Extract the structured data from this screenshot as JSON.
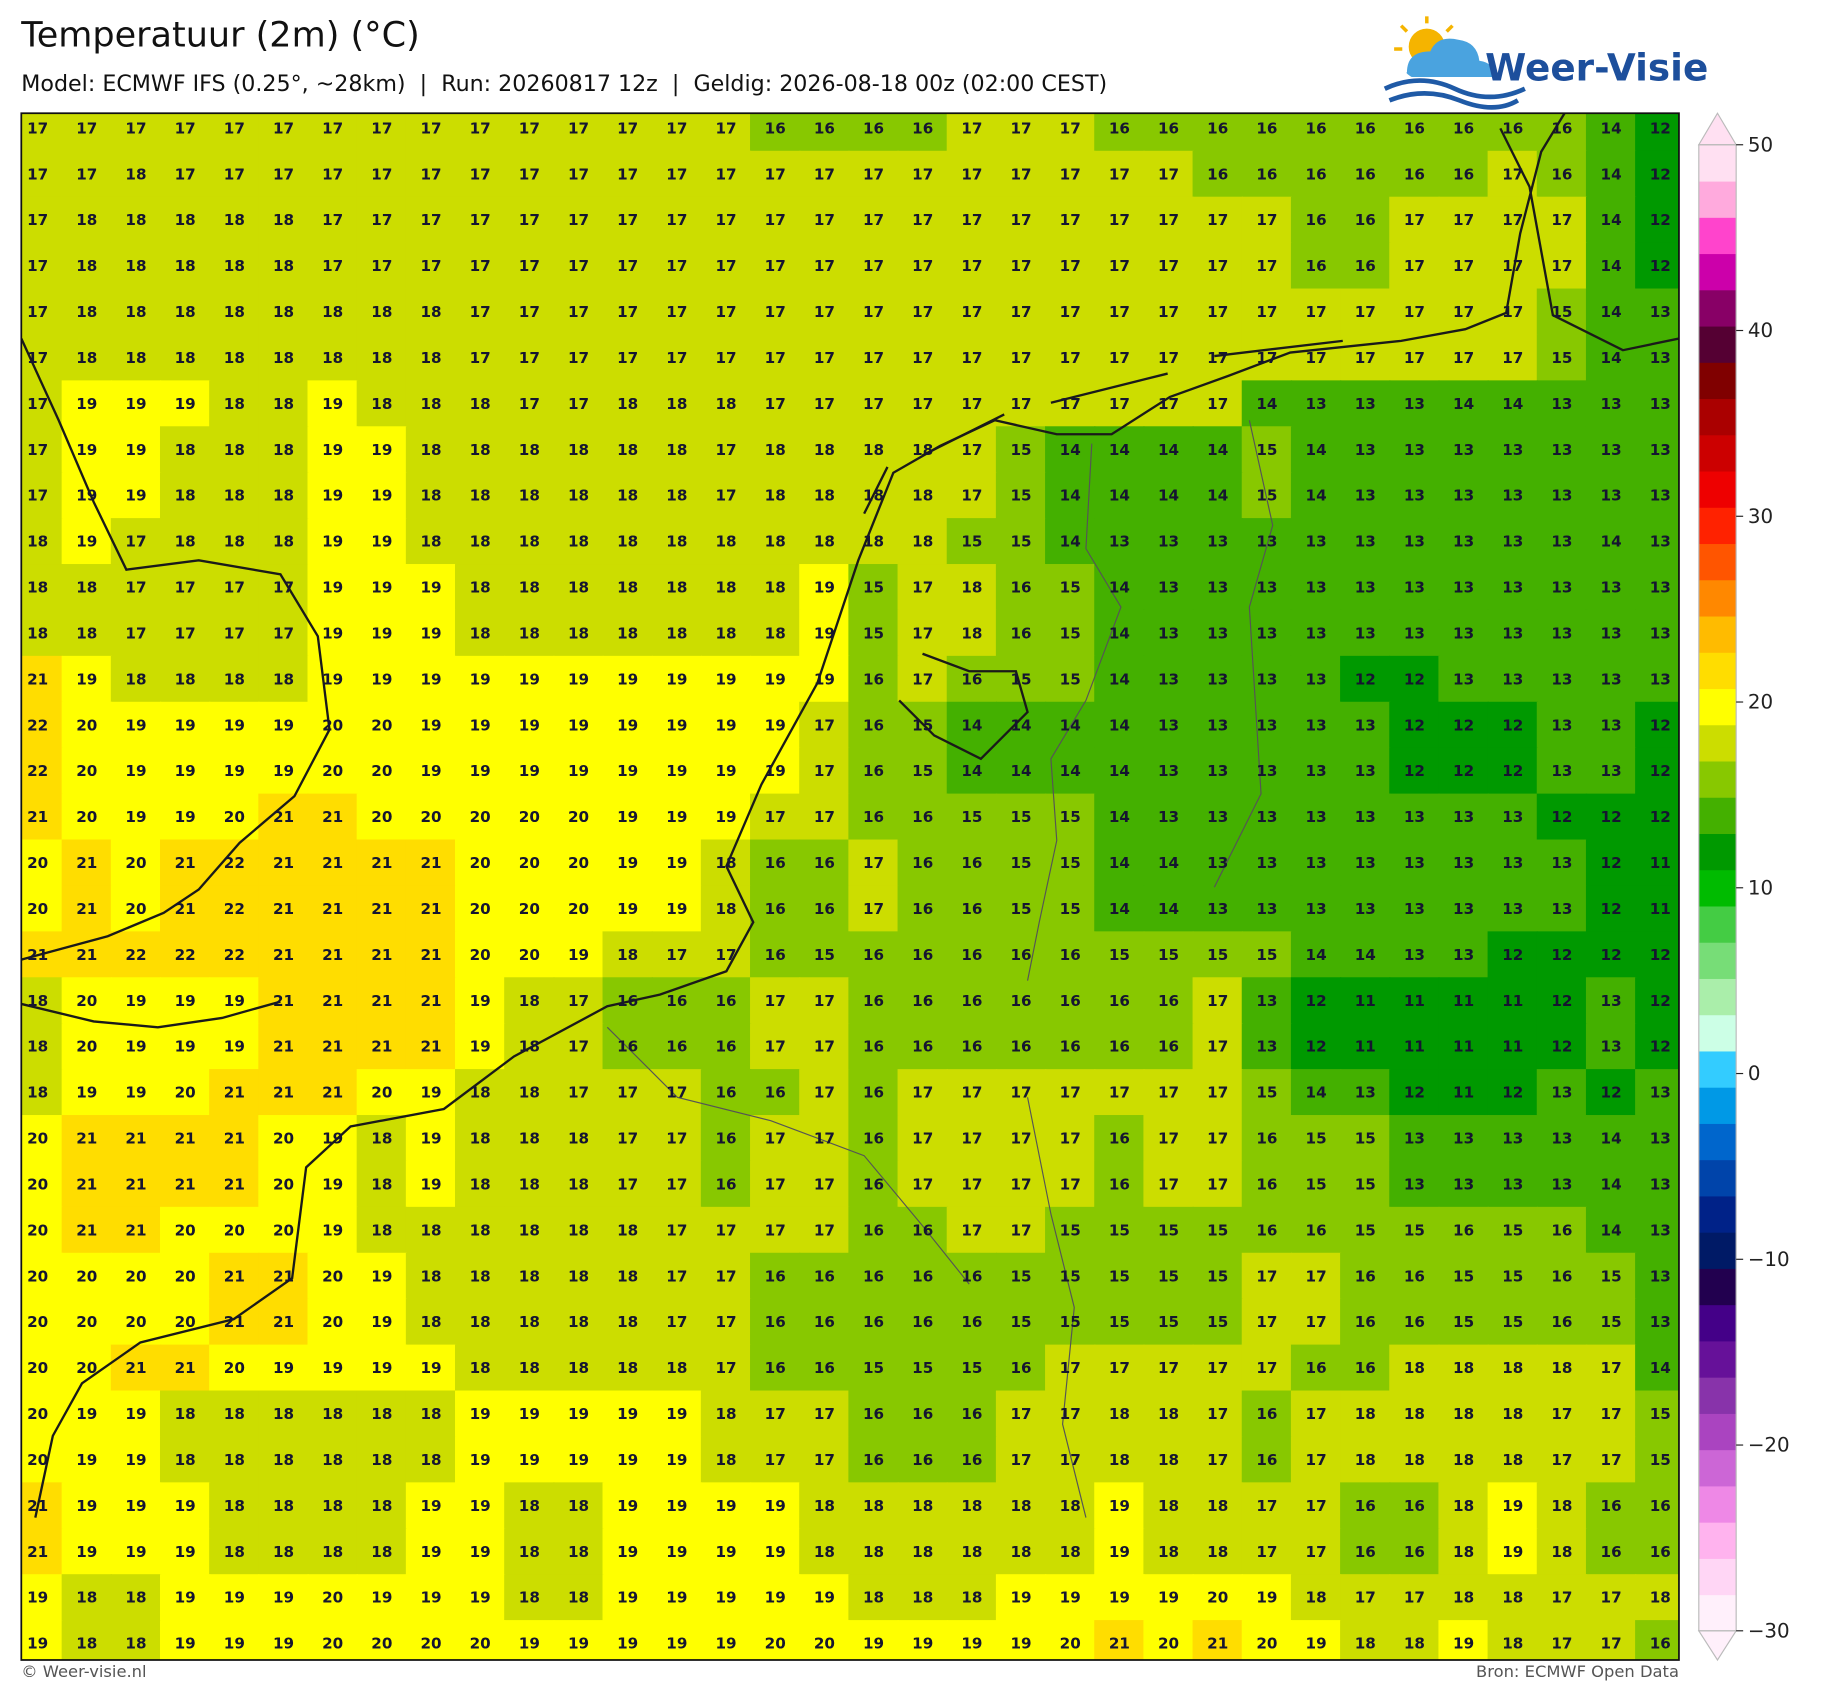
{
  "header": {
    "title": "Temperatuur (2m) (°C)",
    "subtitle": "Model: ECMWF IFS (0.25°, ~28km)  |  Run: 20260817 12z  |  Geldig: 2026-08-18 00z (02:00 CEST)"
  },
  "logo": {
    "text": "Weer-Visie"
  },
  "grid": {
    "rows": [
      [
        17,
        17,
        17,
        17,
        17,
        17,
        17,
        17,
        17,
        17,
        17,
        17,
        17,
        17,
        17,
        16,
        16,
        16,
        16,
        17,
        17,
        17,
        16,
        16,
        16,
        16,
        16,
        16,
        16,
        16,
        16,
        16,
        14,
        12
      ],
      [
        17,
        17,
        18,
        17,
        17,
        17,
        17,
        17,
        17,
        17,
        17,
        17,
        17,
        17,
        17,
        17,
        17,
        17,
        17,
        17,
        17,
        17,
        17,
        17,
        16,
        16,
        16,
        16,
        16,
        16,
        17,
        16,
        14,
        12
      ],
      [
        17,
        18,
        18,
        18,
        18,
        18,
        17,
        17,
        17,
        17,
        17,
        17,
        17,
        17,
        17,
        17,
        17,
        17,
        17,
        17,
        17,
        17,
        17,
        17,
        17,
        17,
        16,
        16,
        17,
        17,
        17,
        17,
        14,
        12
      ],
      [
        17,
        18,
        18,
        18,
        18,
        18,
        17,
        17,
        17,
        17,
        17,
        17,
        17,
        17,
        17,
        17,
        17,
        17,
        17,
        17,
        17,
        17,
        17,
        17,
        17,
        17,
        16,
        16,
        17,
        17,
        17,
        17,
        14,
        12
      ],
      [
        17,
        18,
        18,
        18,
        18,
        18,
        18,
        18,
        18,
        17,
        17,
        17,
        17,
        17,
        17,
        17,
        17,
        17,
        17,
        17,
        17,
        17,
        17,
        17,
        17,
        17,
        17,
        17,
        17,
        17,
        17,
        15,
        14,
        13
      ],
      [
        17,
        18,
        18,
        18,
        18,
        18,
        18,
        18,
        18,
        17,
        17,
        17,
        17,
        17,
        17,
        17,
        17,
        17,
        17,
        17,
        17,
        17,
        17,
        17,
        17,
        17,
        17,
        17,
        17,
        17,
        17,
        15,
        14,
        13
      ],
      [
        17,
        19,
        19,
        19,
        18,
        18,
        19,
        18,
        18,
        18,
        17,
        17,
        18,
        18,
        18,
        17,
        17,
        17,
        17,
        17,
        17,
        17,
        17,
        17,
        17,
        14,
        13,
        13,
        13,
        14,
        14,
        13,
        13,
        13
      ],
      [
        17,
        19,
        19,
        18,
        18,
        18,
        19,
        19,
        18,
        18,
        18,
        18,
        18,
        18,
        17,
        18,
        18,
        18,
        18,
        17,
        15,
        14,
        14,
        14,
        14,
        15,
        14,
        13,
        13,
        13,
        13,
        13,
        13,
        13
      ],
      [
        17,
        19,
        19,
        18,
        18,
        18,
        19,
        19,
        18,
        18,
        18,
        18,
        18,
        18,
        17,
        18,
        18,
        18,
        18,
        17,
        15,
        14,
        14,
        14,
        14,
        15,
        14,
        13,
        13,
        13,
        13,
        13,
        13,
        13
      ],
      [
        18,
        19,
        17,
        18,
        18,
        18,
        19,
        19,
        18,
        18,
        18,
        18,
        18,
        18,
        18,
        18,
        18,
        18,
        18,
        15,
        15,
        14,
        13,
        13,
        13,
        13,
        13,
        13,
        13,
        13,
        13,
        13,
        14,
        13
      ],
      [
        18,
        18,
        17,
        17,
        17,
        17,
        19,
        19,
        19,
        18,
        18,
        18,
        18,
        18,
        18,
        18,
        19,
        15,
        17,
        18,
        16,
        15,
        14,
        13,
        13,
        13,
        13,
        13,
        13,
        13,
        13,
        13,
        13,
        13
      ],
      [
        18,
        18,
        17,
        17,
        17,
        17,
        19,
        19,
        19,
        18,
        18,
        18,
        18,
        18,
        18,
        18,
        19,
        15,
        17,
        18,
        16,
        15,
        14,
        13,
        13,
        13,
        13,
        13,
        13,
        13,
        13,
        13,
        13,
        13
      ],
      [
        21,
        19,
        18,
        18,
        18,
        18,
        19,
        19,
        19,
        19,
        19,
        19,
        19,
        19,
        19,
        19,
        19,
        16,
        17,
        16,
        15,
        15,
        14,
        13,
        13,
        13,
        13,
        12,
        12,
        13,
        13,
        13,
        13,
        13
      ],
      [
        22,
        20,
        19,
        19,
        19,
        19,
        20,
        20,
        19,
        19,
        19,
        19,
        19,
        19,
        19,
        19,
        17,
        16,
        15,
        14,
        14,
        14,
        14,
        13,
        13,
        13,
        13,
        13,
        12,
        12,
        12,
        13,
        13,
        12
      ],
      [
        22,
        20,
        19,
        19,
        19,
        19,
        20,
        20,
        19,
        19,
        19,
        19,
        19,
        19,
        19,
        19,
        17,
        16,
        15,
        14,
        14,
        14,
        14,
        13,
        13,
        13,
        13,
        13,
        12,
        12,
        12,
        13,
        13,
        12
      ],
      [
        21,
        20,
        19,
        19,
        20,
        21,
        21,
        20,
        20,
        20,
        20,
        20,
        19,
        19,
        19,
        17,
        17,
        16,
        16,
        15,
        15,
        15,
        14,
        13,
        13,
        13,
        13,
        13,
        13,
        13,
        13,
        12,
        12,
        12
      ],
      [
        20,
        21,
        20,
        21,
        22,
        21,
        21,
        21,
        21,
        20,
        20,
        20,
        19,
        19,
        18,
        16,
        16,
        17,
        16,
        16,
        15,
        15,
        14,
        14,
        13,
        13,
        13,
        13,
        13,
        13,
        13,
        13,
        12,
        11
      ],
      [
        20,
        21,
        20,
        21,
        22,
        21,
        21,
        21,
        21,
        20,
        20,
        20,
        19,
        19,
        18,
        16,
        16,
        17,
        16,
        16,
        15,
        15,
        14,
        14,
        13,
        13,
        13,
        13,
        13,
        13,
        13,
        13,
        12,
        11
      ],
      [
        21,
        21,
        22,
        22,
        22,
        21,
        21,
        21,
        21,
        20,
        20,
        19,
        18,
        17,
        17,
        16,
        15,
        16,
        16,
        16,
        16,
        16,
        15,
        15,
        15,
        15,
        14,
        14,
        13,
        13,
        12,
        12,
        12,
        12
      ],
      [
        18,
        20,
        19,
        19,
        19,
        21,
        21,
        21,
        21,
        19,
        18,
        17,
        16,
        16,
        16,
        17,
        17,
        16,
        16,
        16,
        16,
        16,
        16,
        16,
        17,
        13,
        12,
        11,
        11,
        11,
        11,
        12,
        13,
        12
      ],
      [
        18,
        20,
        19,
        19,
        19,
        21,
        21,
        21,
        21,
        19,
        18,
        17,
        16,
        16,
        16,
        17,
        17,
        16,
        16,
        16,
        16,
        16,
        16,
        16,
        17,
        13,
        12,
        11,
        11,
        11,
        11,
        12,
        13,
        12
      ],
      [
        18,
        19,
        19,
        20,
        21,
        21,
        21,
        20,
        19,
        18,
        18,
        17,
        17,
        17,
        16,
        16,
        17,
        16,
        17,
        17,
        17,
        17,
        17,
        17,
        17,
        15,
        14,
        13,
        12,
        11,
        12,
        13,
        12,
        13
      ],
      [
        20,
        21,
        21,
        21,
        21,
        20,
        19,
        18,
        19,
        18,
        18,
        18,
        17,
        17,
        16,
        17,
        17,
        16,
        17,
        17,
        17,
        17,
        16,
        17,
        17,
        16,
        15,
        15,
        13,
        13,
        13,
        13,
        14,
        13
      ],
      [
        20,
        21,
        21,
        21,
        21,
        20,
        19,
        18,
        19,
        18,
        18,
        18,
        17,
        17,
        16,
        17,
        17,
        16,
        17,
        17,
        17,
        17,
        16,
        17,
        17,
        16,
        15,
        15,
        13,
        13,
        13,
        13,
        14,
        13
      ],
      [
        20,
        21,
        21,
        20,
        20,
        20,
        19,
        18,
        18,
        18,
        18,
        18,
        18,
        17,
        17,
        17,
        17,
        16,
        16,
        17,
        17,
        15,
        15,
        15,
        15,
        16,
        16,
        15,
        15,
        16,
        15,
        16,
        14,
        13
      ],
      [
        20,
        20,
        20,
        20,
        21,
        21,
        20,
        19,
        18,
        18,
        18,
        18,
        18,
        17,
        17,
        16,
        16,
        16,
        16,
        16,
        15,
        15,
        15,
        15,
        15,
        17,
        17,
        16,
        16,
        15,
        15,
        16,
        15,
        13
      ],
      [
        20,
        20,
        20,
        20,
        21,
        21,
        20,
        19,
        18,
        18,
        18,
        18,
        18,
        17,
        17,
        16,
        16,
        16,
        16,
        16,
        15,
        15,
        15,
        15,
        15,
        17,
        17,
        16,
        16,
        15,
        15,
        16,
        15,
        13
      ],
      [
        20,
        20,
        21,
        21,
        20,
        19,
        19,
        19,
        19,
        18,
        18,
        18,
        18,
        18,
        17,
        16,
        16,
        15,
        15,
        15,
        16,
        17,
        17,
        17,
        17,
        17,
        16,
        16,
        18,
        18,
        18,
        18,
        17,
        14
      ],
      [
        20,
        19,
        19,
        18,
        18,
        18,
        18,
        18,
        18,
        19,
        19,
        19,
        19,
        19,
        18,
        17,
        17,
        16,
        16,
        16,
        17,
        17,
        18,
        18,
        17,
        16,
        17,
        18,
        18,
        18,
        18,
        17,
        17,
        15
      ],
      [
        20,
        19,
        19,
        18,
        18,
        18,
        18,
        18,
        18,
        19,
        19,
        19,
        19,
        19,
        18,
        17,
        17,
        16,
        16,
        16,
        17,
        17,
        18,
        18,
        17,
        16,
        17,
        18,
        18,
        18,
        18,
        17,
        17,
        15
      ],
      [
        21,
        19,
        19,
        19,
        18,
        18,
        18,
        18,
        19,
        19,
        18,
        18,
        19,
        19,
        19,
        19,
        18,
        18,
        18,
        18,
        18,
        18,
        19,
        18,
        18,
        17,
        17,
        16,
        16,
        18,
        19,
        18,
        16,
        16
      ],
      [
        21,
        19,
        19,
        19,
        18,
        18,
        18,
        18,
        19,
        19,
        18,
        18,
        19,
        19,
        19,
        19,
        18,
        18,
        18,
        18,
        18,
        18,
        19,
        18,
        18,
        17,
        17,
        16,
        16,
        18,
        19,
        18,
        16,
        16
      ],
      [
        19,
        18,
        18,
        19,
        19,
        19,
        20,
        19,
        19,
        19,
        18,
        18,
        19,
        19,
        19,
        19,
        19,
        18,
        18,
        18,
        19,
        19,
        19,
        19,
        20,
        19,
        18,
        17,
        17,
        18,
        18,
        17,
        17,
        18
      ],
      [
        19,
        18,
        18,
        19,
        19,
        19,
        20,
        20,
        20,
        20,
        19,
        19,
        19,
        19,
        19,
        20,
        20,
        19,
        19,
        19,
        19,
        20,
        21,
        20,
        21,
        20,
        19,
        18,
        18,
        19,
        18,
        17,
        17,
        16
      ]
    ]
  },
  "colorbar": {
    "lim": [
      -30,
      50
    ],
    "ticks": [
      50,
      40,
      30,
      20,
      10,
      0,
      {
        "value": -10,
        "label": "−10"
      },
      {
        "value": -20,
        "label": "−20"
      },
      {
        "value": -30,
        "label": "−30"
      }
    ],
    "colors": [
      "#fff0fb",
      "#ffd6f5",
      "#ffb3ee",
      "#ee88e6",
      "#cc66d6",
      "#aa44c0",
      "#8833aa",
      "#661199",
      "#440088",
      "#22004f",
      "#001a66",
      "#002288",
      "#0044aa",
      "#0066cc",
      "#0099e6",
      "#33ccff",
      "#ccffe6",
      "#aaeeaa",
      "#77dd77",
      "#44cc44",
      "#00bb00",
      "#009900",
      "#44b000",
      "#88c800",
      "#ccdd00",
      "#ffff00",
      "#ffdd00",
      "#ffbb00",
      "#ff8800",
      "#ff5500",
      "#ff2200",
      "#ee0000",
      "#cc0000",
      "#aa0000",
      "#800000",
      "#550033",
      "#880066",
      "#cc00aa",
      "#ff44cc",
      "#ffaadd",
      "#ffe0f2"
    ]
  },
  "footer": {
    "left": "© Weer-visie.nl",
    "right": "Bron: ECMWF Open Data"
  }
}
